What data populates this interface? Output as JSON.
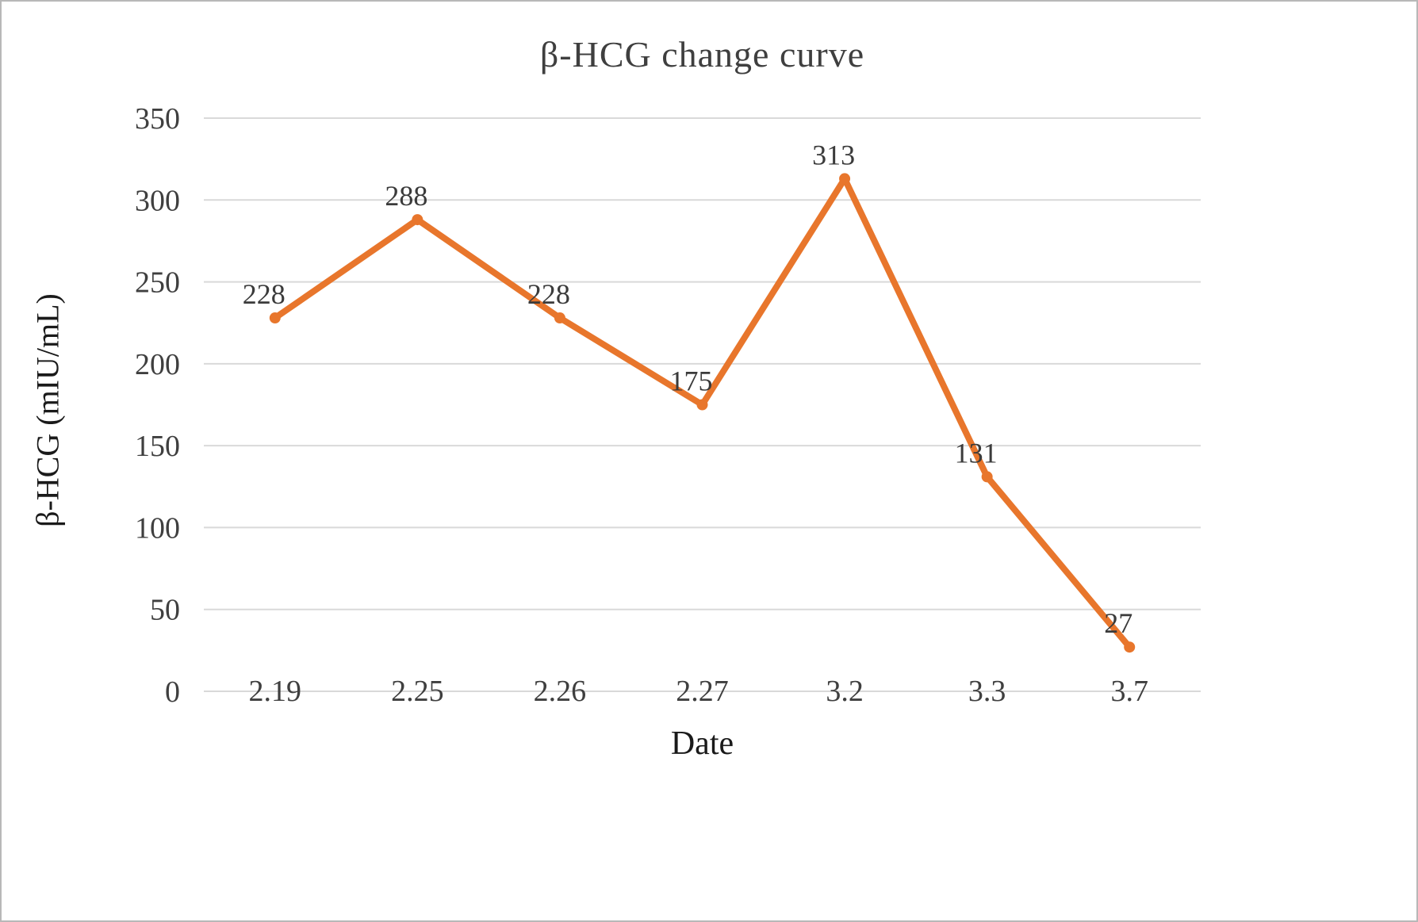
{
  "chart_data": {
    "type": "line",
    "title": "β-HCG change curve",
    "xlabel": "Date",
    "ylabel": "β-HCG (mIU/mL)",
    "categories": [
      "2.19",
      "2.25",
      "2.26",
      "2.27",
      "3.2",
      "3.3",
      "3.7"
    ],
    "series": [
      {
        "name": "β-HCG",
        "values": [
          228,
          288,
          228,
          175,
          313,
          131,
          27
        ]
      }
    ],
    "ylim": [
      0,
      350
    ],
    "ytick_step": 50,
    "grid": true,
    "legend": "none",
    "colors": {
      "line": "#e8762c",
      "grid": "#d9d9d9",
      "tick_text": "#3f3f3f",
      "data_label_text": "#3b3b3b"
    }
  }
}
